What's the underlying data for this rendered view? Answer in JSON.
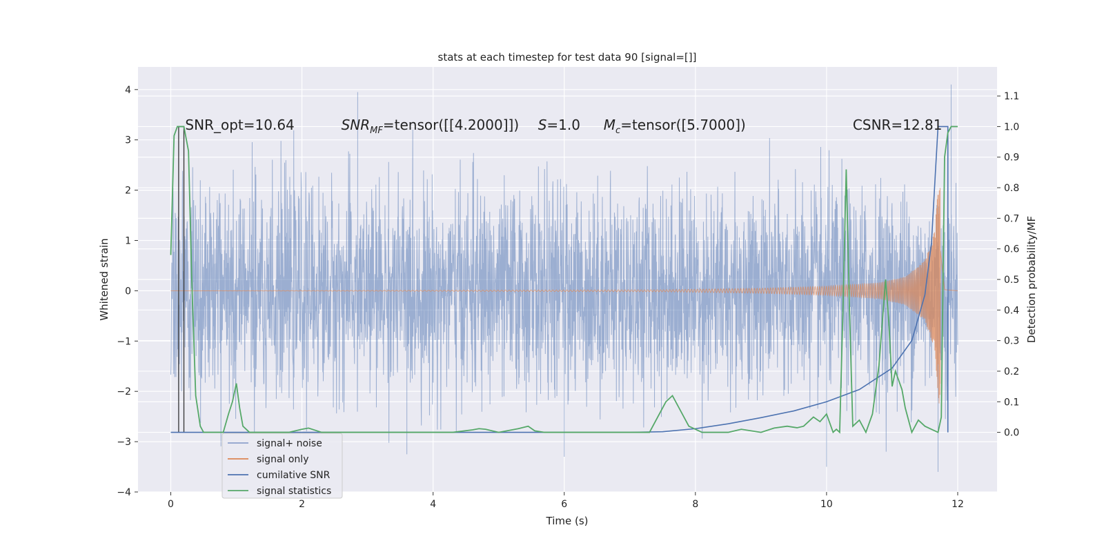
{
  "chart_data": {
    "type": "line",
    "title": "stats at each timestep for test data 90 [signal=[]]",
    "xlabel": "Time (s)",
    "ylabel_left": "Whitened strain",
    "ylabel_right": "Detection probability/MF",
    "xlim": [
      -0.5,
      12.6
    ],
    "ylim_left": [
      -4,
      4.45
    ],
    "ylim_right": [
      -0.195,
      1.195
    ],
    "x_ticks": [
      0,
      2,
      4,
      6,
      8,
      10,
      12
    ],
    "x_tick_labels": [
      "0",
      "2",
      "4",
      "6",
      "8",
      "10",
      "12"
    ],
    "y_left_ticks": [
      -4,
      -3,
      -2,
      -1,
      0,
      1,
      2,
      3,
      4
    ],
    "y_left_tick_labels": [
      "−4",
      "−3",
      "−2",
      "−1",
      "0",
      "1",
      "2",
      "3",
      "4"
    ],
    "y_right_ticks": [
      0,
      0.1,
      0.2,
      0.3,
      0.4,
      0.5,
      0.6,
      0.7,
      0.8,
      0.9,
      1.0,
      1.1
    ],
    "y_right_tick_labels": [
      "0.0",
      "0.1",
      "0.2",
      "0.3",
      "0.4",
      "0.5",
      "0.6",
      "0.7",
      "0.8",
      "0.9",
      "1.0",
      "1.1"
    ],
    "annotations": [
      {
        "text": "SNR_opt=10.64",
        "x": 0.22,
        "y": 3.3
      },
      {
        "text": "SNR",
        "sub": "MF",
        "rest": "=tensor([[4.2000]])",
        "x": 2.6,
        "y": 3.3
      },
      {
        "text": "S",
        "rest": "=1.0",
        "x": 5.6,
        "y": 3.3
      },
      {
        "text": "M",
        "sub": "c",
        "rest": "=tensor([5.7000])",
        "x": 6.6,
        "y": 3.3
      },
      {
        "text": "CSNR=12.81",
        "x": 10.4,
        "y": 3.3
      }
    ],
    "legend": {
      "position": "lower-left",
      "entries": [
        {
          "label": "signal+ noise",
          "color": "#8da0cb"
        },
        {
          "label": "signal only",
          "color": "#dd8452"
        },
        {
          "label": "cumilative SNR",
          "color": "#4c72b0"
        },
        {
          "label": "signal statistics",
          "color": "#55a868"
        }
      ]
    },
    "series": [
      {
        "name": "signal+ noise",
        "axis": "left",
        "color": "#4c72b0",
        "description": "whitened strain noise, approx. gaussian, sampled 0–12 s",
        "x_range": [
          0,
          12
        ],
        "typical_envelope": [
          -2.5,
          2.5
        ],
        "peak_values": [
          {
            "x": 2.85,
            "y": 3.95
          },
          {
            "x": 11.9,
            "y": 4.1
          },
          {
            "x": 3.6,
            "y": -3.25
          },
          {
            "x": 10.0,
            "y": -3.5
          },
          {
            "x": 11.7,
            "y": -3.6
          },
          {
            "x": 6.0,
            "y": -3.3
          }
        ]
      },
      {
        "name": "signal only",
        "axis": "left",
        "color": "#dd8452",
        "description": "chirp, flat near 0 then growing oscillation to merger at ~11.72 s",
        "x": [
          0,
          7.5,
          9,
          10,
          10.8,
          11.2,
          11.5,
          11.65,
          11.72,
          11.8,
          12
        ],
        "amplitude": [
          0,
          0.02,
          0.05,
          0.09,
          0.16,
          0.28,
          0.6,
          1.2,
          2.4,
          0.05,
          0
        ]
      },
      {
        "name": "cumilative SNR",
        "axis": "right",
        "color": "#4c72b0",
        "x": [
          0,
          7.0,
          7.5,
          8.0,
          8.5,
          9.0,
          9.5,
          10.0,
          10.5,
          11.0,
          11.3,
          11.5,
          11.6,
          11.66,
          11.7,
          11.75,
          11.85,
          11.85
        ],
        "y": [
          0,
          0,
          0.002,
          0.012,
          0.028,
          0.048,
          0.07,
          0.1,
          0.14,
          0.21,
          0.3,
          0.45,
          0.62,
          0.85,
          1.0,
          1.0,
          1.0,
          0
        ]
      },
      {
        "name": "signal statistics",
        "axis": "right",
        "color": "#55a868",
        "x": [
          0,
          0.05,
          0.1,
          0.15,
          0.2,
          0.27,
          0.32,
          0.38,
          0.45,
          0.5,
          0.6,
          0.7,
          0.8,
          0.88,
          0.94,
          1.0,
          1.05,
          1.1,
          1.2,
          1.4,
          1.6,
          1.8,
          2.0,
          2.1,
          2.3,
          2.5,
          3.0,
          3.5,
          4.0,
          4.3,
          4.6,
          4.7,
          4.8,
          5.0,
          5.3,
          5.45,
          5.55,
          5.7,
          6.0,
          6.5,
          7.0,
          7.3,
          7.55,
          7.65,
          7.75,
          7.9,
          8.1,
          8.5,
          8.7,
          9.0,
          9.2,
          9.4,
          9.55,
          9.65,
          9.8,
          9.9,
          10.0,
          10.1,
          10.15,
          10.2,
          10.25,
          10.3,
          10.35,
          10.4,
          10.45,
          10.5,
          10.6,
          10.7,
          10.8,
          10.85,
          10.9,
          10.95,
          11.0,
          11.05,
          11.1,
          11.15,
          11.2,
          11.3,
          11.4,
          11.5,
          11.6,
          11.7,
          11.75,
          11.8,
          11.85,
          11.9,
          12.0
        ],
        "y": [
          0.58,
          0.97,
          1.0,
          1.0,
          1.0,
          0.92,
          0.5,
          0.12,
          0.02,
          0.0,
          0.0,
          0.0,
          0.0,
          0.06,
          0.1,
          0.16,
          0.08,
          0.02,
          0.0,
          0.0,
          0.0,
          0.0,
          0.01,
          0.014,
          0.0,
          0.0,
          0.0,
          0.0,
          0.0,
          0.0,
          0.008,
          0.012,
          0.01,
          0.0,
          0.012,
          0.02,
          0.005,
          0.0,
          0.0,
          0.0,
          0.0,
          0.0,
          0.1,
          0.12,
          0.08,
          0.02,
          0.0,
          0.0,
          0.01,
          0.0,
          0.014,
          0.02,
          0.015,
          0.02,
          0.05,
          0.035,
          0.06,
          0.0,
          0.01,
          0.0,
          0.4,
          0.86,
          0.4,
          0.02,
          0.03,
          0.04,
          0.0,
          0.06,
          0.22,
          0.36,
          0.5,
          0.36,
          0.15,
          0.2,
          0.17,
          0.14,
          0.08,
          0.0,
          0.04,
          0.02,
          0.01,
          0.0,
          0.05,
          0.9,
          0.98,
          1.0,
          1.0
        ]
      }
    ]
  }
}
